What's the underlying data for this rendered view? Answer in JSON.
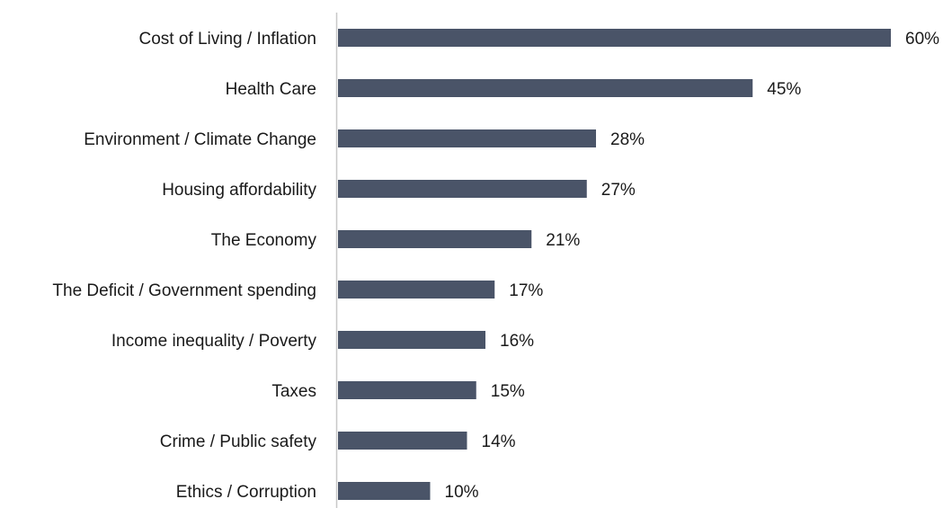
{
  "chart_data": {
    "type": "bar",
    "orientation": "horizontal",
    "title": "",
    "xlabel": "",
    "ylabel": "",
    "categories": [
      "Cost of Living / Inflation",
      "Health Care",
      "Environment / Climate Change",
      "Housing affordability",
      "The Economy",
      "The Deficit / Government spending",
      "Income inequality / Poverty",
      "Taxes",
      "Crime / Public safety",
      "Ethics / Corruption"
    ],
    "values": [
      60,
      45,
      28,
      27,
      21,
      17,
      16,
      15,
      14,
      10
    ],
    "value_labels": [
      "60%",
      "45%",
      "28%",
      "27%",
      "21%",
      "17%",
      "16%",
      "15%",
      "14%",
      "10%"
    ],
    "unit": "%",
    "xlim": [
      0,
      60
    ],
    "grid": false,
    "legend": "none",
    "bar_color": "#4a5468",
    "axis_color": "#c8c8c8"
  }
}
